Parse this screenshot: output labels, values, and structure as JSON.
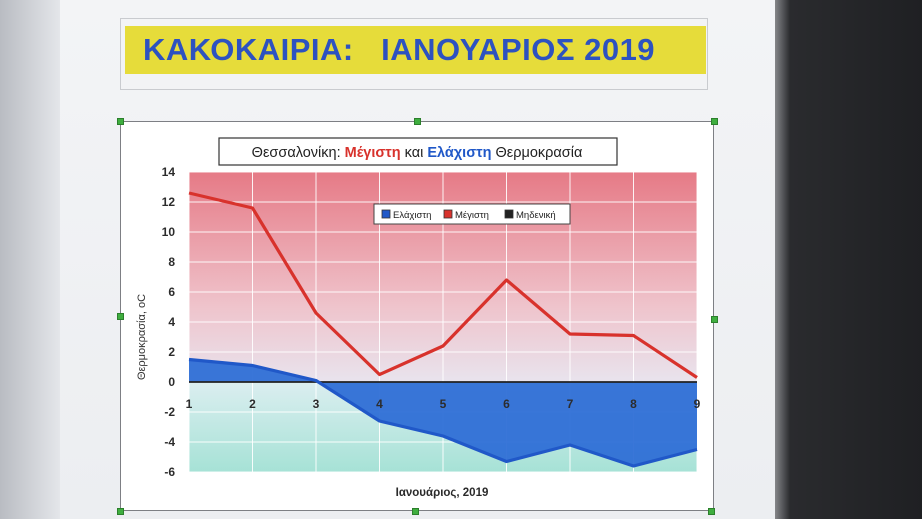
{
  "document": {
    "heading": "ΚΑΚΟΚΑΙΡΙΑ:   ΙΑΝΟΥΑΡΙΟΣ 2019"
  },
  "colors": {
    "heading_bg": "#e6dc3a",
    "heading_text": "#2d52c0",
    "max_series": "#d8322c",
    "min_series": "#2058c8",
    "zero_line": "#222222"
  },
  "chart_data": {
    "type": "line",
    "title_parts": [
      {
        "text": "Θεσσαλονίκη: ",
        "color": "#222222"
      },
      {
        "text": "Μέγιστη",
        "color": "#d8322c"
      },
      {
        "text": " και ",
        "color": "#222222"
      },
      {
        "text": "Ελάχιστη",
        "color": "#2058c8"
      },
      {
        "text": " Θερμοκρασία",
        "color": "#222222"
      }
    ],
    "xlabel": "Ιανουάριος, 2019",
    "ylabel": "Θερμοκρασία, oC",
    "x": [
      1,
      2,
      3,
      4,
      5,
      6,
      7,
      8,
      9
    ],
    "x_tick_labels": [
      "1",
      "2",
      "3",
      "4",
      "5",
      "6",
      "7",
      "8",
      "9"
    ],
    "ylim": [
      -6,
      14
    ],
    "y_ticks": [
      -6,
      -4,
      -2,
      0,
      2,
      4,
      6,
      8,
      10,
      12,
      14
    ],
    "grid": true,
    "legend_position": "top-center",
    "series": [
      {
        "name": "Ελάχιστη",
        "color": "#2058c8",
        "values": [
          1.5,
          1.1,
          0.1,
          -2.6,
          -3.6,
          -5.3,
          -4.2,
          -5.6,
          -4.5
        ],
        "fill": "area-to-zero"
      },
      {
        "name": "Μέγιστη",
        "color": "#d8322c",
        "values": [
          12.6,
          11.6,
          4.6,
          0.5,
          2.4,
          6.8,
          3.2,
          3.1,
          0.3
        ]
      },
      {
        "name": "Μηδενική",
        "color": "#222222",
        "values": [
          0,
          0,
          0,
          0,
          0,
          0,
          0,
          0,
          0
        ]
      }
    ]
  }
}
